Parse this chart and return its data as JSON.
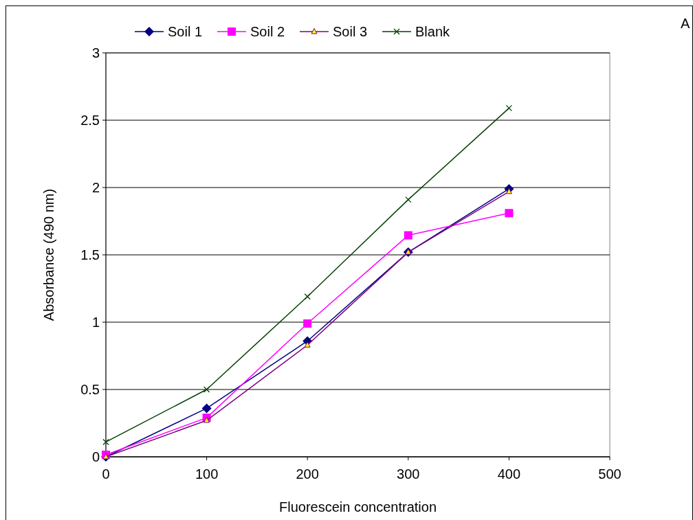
{
  "chart_data": {
    "type": "line",
    "xlabel": "Fluorescein concentration",
    "ylabel": "Absorbance (490 nm)",
    "annotations": [
      "A"
    ],
    "x": [
      0,
      100,
      200,
      300,
      400
    ],
    "series": [
      {
        "name": "Soil 1",
        "color": "#000080",
        "marker": "diamond",
        "values": [
          0.0,
          0.36,
          0.86,
          1.52,
          1.99
        ]
      },
      {
        "name": "Soil 2",
        "color": "#ff00ff",
        "marker": "square",
        "values": [
          0.015,
          0.29,
          0.99,
          1.645,
          1.81
        ]
      },
      {
        "name": "Soil 3",
        "color": "#800080",
        "marker": "triangle",
        "values": [
          0.0,
          0.27,
          0.83,
          1.52,
          1.97
        ]
      },
      {
        "name": "Blank",
        "color": "#004000",
        "marker": "cross",
        "values": [
          0.11,
          0.5,
          1.19,
          1.91,
          2.59
        ]
      }
    ],
    "xlim": [
      0,
      500
    ],
    "xticks": [
      0,
      100,
      200,
      300,
      400,
      500
    ],
    "ylim": [
      0,
      3
    ],
    "yticks": [
      0,
      0.5,
      1,
      1.5,
      2,
      2.5,
      3
    ],
    "grid": "y",
    "legend": "top",
    "line_style": "solid"
  }
}
